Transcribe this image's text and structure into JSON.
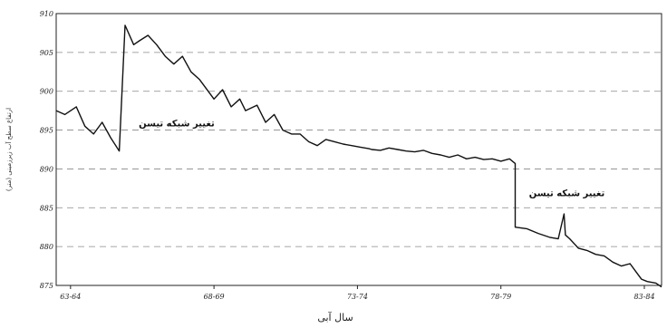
{
  "chart_data": {
    "type": "line",
    "xlabel": "سال آبی",
    "ylabel": "ارتفاع سطح آب زیرزمینی (متر)",
    "x_ticks": [
      "63-64",
      "68-69",
      "73-74",
      "78-79",
      "83-84"
    ],
    "y_ticks": [
      875,
      880,
      885,
      890,
      895,
      900,
      905,
      910
    ],
    "ylim": [
      875,
      910
    ],
    "grid": "horizontal-dashed",
    "annotations": [
      {
        "text": "تغییر شبکه تیسن",
        "x": 67.2,
        "y": 895.5
      },
      {
        "text": "تغییر شبکه تیسن",
        "x": 80.8,
        "y": 886.5
      }
    ],
    "series": [
      {
        "x": [
          63.0,
          63.3,
          63.7,
          64.0,
          64.3,
          64.6,
          64.9,
          65.2,
          65.4,
          65.7,
          65.9,
          66.2,
          66.5,
          66.8,
          67.1,
          67.4,
          67.7,
          68.0,
          68.2,
          68.5,
          68.8,
          69.1,
          69.4,
          69.6,
          70.0,
          70.3,
          70.6,
          70.9,
          71.2,
          71.5,
          71.8,
          72.1,
          72.4,
          72.7,
          73.0,
          73.3,
          73.6,
          73.9,
          74.0,
          74.3,
          74.6,
          74.9,
          75.2,
          75.5,
          75.8,
          76.1,
          76.4,
          76.7,
          77.0,
          77.3,
          77.6,
          77.9,
          78.2,
          78.5,
          78.8,
          79.0,
          79.0,
          79.4,
          79.8,
          80.2,
          80.5,
          80.7,
          80.75,
          80.9,
          81.2,
          81.5,
          81.8,
          82.1,
          82.4,
          82.7,
          83.0,
          83.2,
          83.4,
          83.6,
          83.9,
          84.1
        ],
        "y": [
          897.5,
          897.0,
          898.0,
          895.5,
          894.5,
          896.0,
          894.0,
          892.3,
          908.5,
          906.0,
          906.5,
          907.2,
          906.0,
          904.5,
          903.5,
          904.5,
          902.5,
          901.5,
          900.5,
          899.0,
          900.2,
          898.0,
          899.0,
          897.5,
          898.2,
          896.0,
          897.0,
          895.0,
          894.5,
          894.5,
          893.5,
          893.0,
          893.8,
          893.5,
          893.2,
          893.0,
          892.8,
          892.6,
          892.5,
          892.4,
          892.7,
          892.5,
          892.3,
          892.2,
          892.4,
          892.0,
          891.8,
          891.5,
          891.8,
          891.3,
          891.5,
          891.2,
          891.3,
          891.0,
          891.3,
          890.7,
          882.5,
          882.3,
          881.7,
          881.2,
          881.0,
          884.2,
          881.5,
          881.0,
          879.8,
          879.5,
          879.0,
          878.8,
          878.0,
          877.5,
          877.8,
          876.8,
          875.8,
          875.5,
          875.3,
          874.8
        ]
      }
    ]
  }
}
